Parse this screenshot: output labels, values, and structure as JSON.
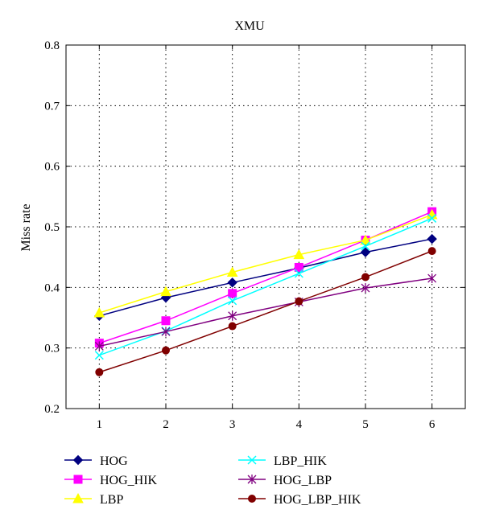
{
  "chart_data": {
    "type": "line",
    "title": "XMU",
    "xlabel": "",
    "ylabel": "Miss rate",
    "x": [
      1,
      2,
      3,
      4,
      5,
      6
    ],
    "x_ticks": [
      "1",
      "2",
      "3",
      "4",
      "5",
      "6"
    ],
    "xlim": [
      0.5,
      6.5
    ],
    "ylim": [
      0.2,
      0.8
    ],
    "y_ticks": [
      "0.2",
      "0.3",
      "0.4",
      "0.5",
      "0.6",
      "0.7",
      "0.8"
    ],
    "grid": true,
    "legend_position": "bottom",
    "series": [
      {
        "name": "HOG",
        "color": "#000080",
        "marker": "diamond",
        "values": [
          0.353,
          0.383,
          0.408,
          0.432,
          0.458,
          0.48
        ]
      },
      {
        "name": "HOG_HIK",
        "color": "#ff00ff",
        "marker": "square",
        "values": [
          0.308,
          0.345,
          0.39,
          0.433,
          0.478,
          0.525
        ]
      },
      {
        "name": "LBP",
        "color": "#ffff00",
        "marker": "triangle",
        "values": [
          0.358,
          0.393,
          0.425,
          0.454,
          0.478,
          0.52
        ]
      },
      {
        "name": "LBP_HIK",
        "color": "#00ffff",
        "marker": "x",
        "values": [
          0.288,
          0.328,
          0.378,
          0.423,
          0.468,
          0.514
        ]
      },
      {
        "name": "HOG_LBP",
        "color": "#800080",
        "marker": "star",
        "values": [
          0.303,
          0.327,
          0.353,
          0.376,
          0.399,
          0.415
        ]
      },
      {
        "name": "HOG_LBP_HIK",
        "color": "#800000",
        "marker": "circle",
        "values": [
          0.26,
          0.296,
          0.336,
          0.377,
          0.417,
          0.46
        ]
      }
    ]
  }
}
